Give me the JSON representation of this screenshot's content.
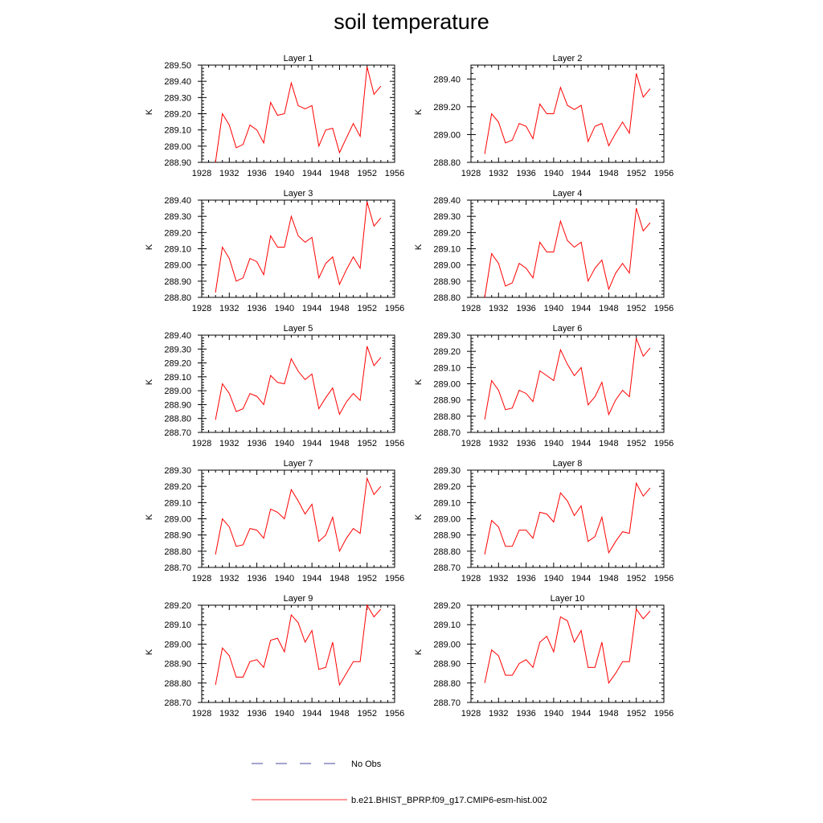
{
  "title": "soil temperature",
  "legend": {
    "items": [
      {
        "label": "No Obs",
        "color": "#4a4aa0",
        "style": "dashed"
      },
      {
        "label": "b.e21.BHIST_BPRP.f09_g17.CMIP6-esm-hist.002",
        "color": "#ff3333",
        "style": "solid"
      }
    ]
  },
  "chart_data": [
    {
      "type": "line",
      "title": "Layer 1",
      "ylabel": "K",
      "xlim": [
        1928,
        1956
      ],
      "xticks": [
        "1928",
        "1932",
        "1936",
        "1940",
        "1944",
        "1948",
        "1952",
        "1956"
      ],
      "ylim": [
        288.9,
        289.5
      ],
      "yticks": [
        "288.90",
        "289.00",
        "289.10",
        "289.20",
        "289.30",
        "289.40",
        "289.50"
      ],
      "series": [
        {
          "color": "#ff0000",
          "x": [
            1930,
            1931,
            1932,
            1933,
            1934,
            1935,
            1936,
            1937,
            1938,
            1939,
            1940,
            1941,
            1942,
            1943,
            1944,
            1945,
            1946,
            1947,
            1948,
            1949,
            1950,
            1951,
            1952,
            1953,
            1954
          ],
          "values": [
            288.9,
            289.2,
            289.13,
            288.99,
            289.01,
            289.13,
            289.1,
            289.02,
            289.27,
            289.19,
            289.2,
            289.39,
            289.25,
            289.23,
            289.25,
            289.0,
            289.1,
            289.11,
            288.96,
            289.05,
            289.14,
            289.06,
            289.49,
            289.32,
            289.37
          ]
        }
      ]
    },
    {
      "type": "line",
      "title": "Layer 2",
      "ylabel": "K",
      "xlim": [
        1928,
        1956
      ],
      "xticks": [
        "1928",
        "1932",
        "1936",
        "1940",
        "1944",
        "1948",
        "1952",
        "1956"
      ],
      "ylim": [
        288.8,
        289.5
      ],
      "yticks": [
        "288.80",
        "289.00",
        "289.20",
        "289.40"
      ],
      "series": [
        {
          "color": "#ff0000",
          "x": [
            1930,
            1931,
            1932,
            1933,
            1934,
            1935,
            1936,
            1937,
            1938,
            1939,
            1940,
            1941,
            1942,
            1943,
            1944,
            1945,
            1946,
            1947,
            1948,
            1949,
            1950,
            1951,
            1952,
            1953,
            1954
          ],
          "values": [
            288.86,
            289.15,
            289.09,
            288.94,
            288.96,
            289.08,
            289.06,
            288.97,
            289.22,
            289.15,
            289.15,
            289.34,
            289.21,
            289.18,
            289.21,
            288.95,
            289.06,
            289.08,
            288.92,
            289.01,
            289.09,
            289.01,
            289.44,
            289.27,
            289.33
          ]
        }
      ]
    },
    {
      "type": "line",
      "title": "Layer 3",
      "ylabel": "K",
      "xlim": [
        1928,
        1956
      ],
      "xticks": [
        "1928",
        "1932",
        "1936",
        "1940",
        "1944",
        "1948",
        "1952",
        "1956"
      ],
      "ylim": [
        288.8,
        289.4
      ],
      "yticks": [
        "288.80",
        "288.90",
        "289.00",
        "289.10",
        "289.20",
        "289.30",
        "289.40"
      ],
      "series": [
        {
          "color": "#ff0000",
          "x": [
            1930,
            1931,
            1932,
            1933,
            1934,
            1935,
            1936,
            1937,
            1938,
            1939,
            1940,
            1941,
            1942,
            1943,
            1944,
            1945,
            1946,
            1947,
            1948,
            1949,
            1950,
            1951,
            1952,
            1953,
            1954
          ],
          "values": [
            288.83,
            289.11,
            289.04,
            288.9,
            288.92,
            289.04,
            289.02,
            288.94,
            289.18,
            289.11,
            289.11,
            289.3,
            289.18,
            289.14,
            289.17,
            288.92,
            289.01,
            289.05,
            288.88,
            288.97,
            289.05,
            288.98,
            289.39,
            289.24,
            289.29
          ]
        }
      ]
    },
    {
      "type": "line",
      "title": "Layer 4",
      "ylabel": "K",
      "xlim": [
        1928,
        1956
      ],
      "xticks": [
        "1928",
        "1932",
        "1936",
        "1940",
        "1944",
        "1948",
        "1952",
        "1956"
      ],
      "ylim": [
        288.8,
        289.4
      ],
      "yticks": [
        "288.80",
        "288.90",
        "289.00",
        "289.10",
        "289.20",
        "289.30",
        "289.40"
      ],
      "series": [
        {
          "color": "#ff0000",
          "x": [
            1930,
            1931,
            1932,
            1933,
            1934,
            1935,
            1936,
            1937,
            1938,
            1939,
            1940,
            1941,
            1942,
            1943,
            1944,
            1945,
            1946,
            1947,
            1948,
            1949,
            1950,
            1951,
            1952,
            1953,
            1954
          ],
          "values": [
            288.8,
            289.07,
            289.01,
            288.87,
            288.89,
            289.01,
            288.98,
            288.92,
            289.14,
            289.08,
            289.08,
            289.27,
            289.15,
            289.11,
            289.14,
            288.9,
            288.98,
            289.03,
            288.85,
            288.95,
            289.01,
            288.95,
            289.35,
            289.21,
            289.26
          ]
        }
      ]
    },
    {
      "type": "line",
      "title": "Layer 5",
      "ylabel": "K",
      "xlim": [
        1928,
        1956
      ],
      "xticks": [
        "1928",
        "1932",
        "1936",
        "1940",
        "1944",
        "1948",
        "1952",
        "1956"
      ],
      "ylim": [
        288.7,
        289.4
      ],
      "yticks": [
        "288.70",
        "288.80",
        "288.90",
        "289.00",
        "289.10",
        "289.20",
        "289.30",
        "289.40"
      ],
      "series": [
        {
          "color": "#ff0000",
          "x": [
            1930,
            1931,
            1932,
            1933,
            1934,
            1935,
            1936,
            1937,
            1938,
            1939,
            1940,
            1941,
            1942,
            1943,
            1944,
            1945,
            1946,
            1947,
            1948,
            1949,
            1950,
            1951,
            1952,
            1953,
            1954
          ],
          "values": [
            288.79,
            289.05,
            288.98,
            288.85,
            288.87,
            288.98,
            288.96,
            288.9,
            289.11,
            289.06,
            289.05,
            289.23,
            289.14,
            289.08,
            289.12,
            288.87,
            288.95,
            289.02,
            288.83,
            288.92,
            288.98,
            288.93,
            289.32,
            289.18,
            289.24
          ]
        }
      ]
    },
    {
      "type": "line",
      "title": "Layer 6",
      "ylabel": "K",
      "xlim": [
        1928,
        1956
      ],
      "xticks": [
        "1928",
        "1932",
        "1936",
        "1940",
        "1944",
        "1948",
        "1952",
        "1956"
      ],
      "ylim": [
        288.7,
        289.3
      ],
      "yticks": [
        "288.70",
        "288.80",
        "288.90",
        "289.00",
        "289.10",
        "289.20",
        "289.30"
      ],
      "series": [
        {
          "color": "#ff0000",
          "x": [
            1930,
            1931,
            1932,
            1933,
            1934,
            1935,
            1936,
            1937,
            1938,
            1939,
            1940,
            1941,
            1942,
            1943,
            1944,
            1945,
            1946,
            1947,
            1948,
            1949,
            1950,
            1951,
            1952,
            1953,
            1954
          ],
          "values": [
            288.78,
            289.02,
            288.96,
            288.84,
            288.85,
            288.96,
            288.94,
            288.89,
            289.08,
            289.05,
            289.02,
            289.21,
            289.12,
            289.05,
            289.1,
            288.87,
            288.92,
            289.01,
            288.81,
            288.9,
            288.96,
            288.92,
            289.28,
            289.17,
            289.22
          ]
        }
      ]
    },
    {
      "type": "line",
      "title": "Layer 7",
      "ylabel": "K",
      "xlim": [
        1928,
        1956
      ],
      "xticks": [
        "1928",
        "1932",
        "1936",
        "1940",
        "1944",
        "1948",
        "1952",
        "1956"
      ],
      "ylim": [
        288.7,
        289.3
      ],
      "yticks": [
        "288.70",
        "288.80",
        "288.90",
        "289.00",
        "289.10",
        "289.20",
        "289.30"
      ],
      "series": [
        {
          "color": "#ff0000",
          "x": [
            1930,
            1931,
            1932,
            1933,
            1934,
            1935,
            1936,
            1937,
            1938,
            1939,
            1940,
            1941,
            1942,
            1943,
            1944,
            1945,
            1946,
            1947,
            1948,
            1949,
            1950,
            1951,
            1952,
            1953,
            1954
          ],
          "values": [
            288.78,
            289.0,
            288.95,
            288.83,
            288.84,
            288.94,
            288.93,
            288.88,
            289.06,
            289.04,
            289.0,
            289.18,
            289.11,
            289.03,
            289.09,
            288.86,
            288.9,
            289.01,
            288.8,
            288.88,
            288.94,
            288.91,
            289.25,
            289.15,
            289.2
          ]
        }
      ]
    },
    {
      "type": "line",
      "title": "Layer 8",
      "ylabel": "K",
      "xlim": [
        1928,
        1956
      ],
      "xticks": [
        "1928",
        "1932",
        "1936",
        "1940",
        "1944",
        "1948",
        "1952",
        "1956"
      ],
      "ylim": [
        288.7,
        289.3
      ],
      "yticks": [
        "288.70",
        "288.80",
        "288.90",
        "289.00",
        "289.10",
        "289.20",
        "289.30"
      ],
      "series": [
        {
          "color": "#ff0000",
          "x": [
            1930,
            1931,
            1932,
            1933,
            1934,
            1935,
            1936,
            1937,
            1938,
            1939,
            1940,
            1941,
            1942,
            1943,
            1944,
            1945,
            1946,
            1947,
            1948,
            1949,
            1950,
            1951,
            1952,
            1953,
            1954
          ],
          "values": [
            288.78,
            288.99,
            288.95,
            288.83,
            288.83,
            288.93,
            288.93,
            288.88,
            289.04,
            289.03,
            288.98,
            289.16,
            289.11,
            289.02,
            289.08,
            288.86,
            288.89,
            289.01,
            288.79,
            288.86,
            288.92,
            288.91,
            289.22,
            289.14,
            289.19
          ]
        }
      ]
    },
    {
      "type": "line",
      "title": "Layer 9",
      "ylabel": "K",
      "xlim": [
        1928,
        1956
      ],
      "xticks": [
        "1928",
        "1932",
        "1936",
        "1940",
        "1944",
        "1948",
        "1952",
        "1956"
      ],
      "ylim": [
        288.7,
        289.2
      ],
      "yticks": [
        "288.70",
        "288.80",
        "288.90",
        "289.00",
        "289.10",
        "289.20"
      ],
      "series": [
        {
          "color": "#ff0000",
          "x": [
            1930,
            1931,
            1932,
            1933,
            1934,
            1935,
            1936,
            1937,
            1938,
            1939,
            1940,
            1941,
            1942,
            1943,
            1944,
            1945,
            1946,
            1947,
            1948,
            1949,
            1950,
            1951,
            1952,
            1953,
            1954
          ],
          "values": [
            288.79,
            288.98,
            288.94,
            288.83,
            288.83,
            288.91,
            288.92,
            288.88,
            289.02,
            289.03,
            288.96,
            289.15,
            289.11,
            289.01,
            289.07,
            288.87,
            288.88,
            289.01,
            288.79,
            288.85,
            288.91,
            288.91,
            289.2,
            289.14,
            289.18
          ]
        }
      ]
    },
    {
      "type": "line",
      "title": "Layer 10",
      "ylabel": "K",
      "xlim": [
        1928,
        1956
      ],
      "xticks": [
        "1928",
        "1932",
        "1936",
        "1940",
        "1944",
        "1948",
        "1952",
        "1956"
      ],
      "ylim": [
        288.7,
        289.2
      ],
      "yticks": [
        "288.70",
        "288.80",
        "288.90",
        "289.00",
        "289.10",
        "289.20"
      ],
      "series": [
        {
          "color": "#ff0000",
          "x": [
            1930,
            1931,
            1932,
            1933,
            1934,
            1935,
            1936,
            1937,
            1938,
            1939,
            1940,
            1941,
            1942,
            1943,
            1944,
            1945,
            1946,
            1947,
            1948,
            1949,
            1950,
            1951,
            1952,
            1953,
            1954
          ],
          "values": [
            288.8,
            288.97,
            288.94,
            288.84,
            288.84,
            288.9,
            288.92,
            288.88,
            289.01,
            289.04,
            288.96,
            289.14,
            289.12,
            289.01,
            289.07,
            288.88,
            288.88,
            289.01,
            288.8,
            288.85,
            288.91,
            288.91,
            289.18,
            289.13,
            289.17
          ]
        }
      ]
    }
  ]
}
